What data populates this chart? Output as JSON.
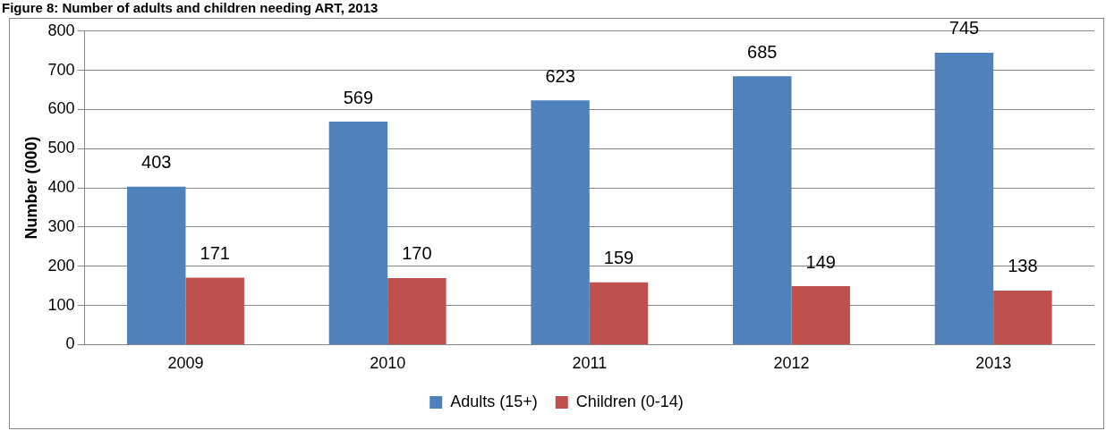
{
  "chart_data": {
    "type": "bar",
    "title": "Figure 8: Number of adults and children needing ART, 2013",
    "ylabel": "Number (000)",
    "categories": [
      "2009",
      "2010",
      "2011",
      "2012",
      "2013"
    ],
    "series": [
      {
        "name": "Adults (15+)",
        "color": "#4f81bd",
        "values": [
          403,
          569,
          623,
          685,
          745
        ]
      },
      {
        "name": "Children (0-14)",
        "color": "#c0504d",
        "values": [
          171,
          170,
          159,
          149,
          138
        ]
      }
    ],
    "ylim": [
      0,
      800
    ],
    "yticks": [
      0,
      100,
      200,
      300,
      400,
      500,
      600,
      700,
      800
    ],
    "grid": "y",
    "legend": "bottom",
    "data_labels": true
  }
}
